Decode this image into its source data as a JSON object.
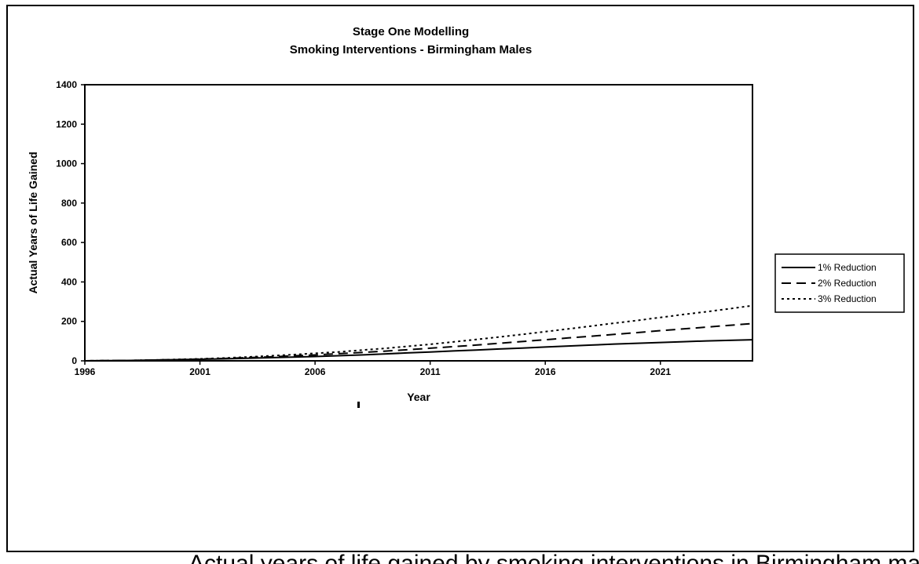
{
  "chart_data": {
    "type": "line",
    "title": "Stage One Modelling",
    "subtitle": "Smoking Interventions - Birmingham Males",
    "xlabel": "Year",
    "ylabel": "Actual Years of Life Gained",
    "xlim": [
      1996,
      2025
    ],
    "ylim": [
      0,
      1400
    ],
    "x_ticks": [
      1996,
      2001,
      2006,
      2011,
      2016,
      2021
    ],
    "y_ticks": [
      0,
      200,
      400,
      600,
      800,
      1000,
      1200,
      1400
    ],
    "grid": false,
    "legend_position": "right",
    "x": [
      1996,
      1997,
      1998,
      1999,
      2000,
      2001,
      2002,
      2003,
      2004,
      2005,
      2006,
      2007,
      2008,
      2009,
      2010,
      2011,
      2012,
      2013,
      2014,
      2015,
      2016,
      2017,
      2018,
      2019,
      2020,
      2021,
      2022,
      2023,
      2024,
      2025
    ],
    "series": [
      {
        "name": "1% Reduction",
        "dash": "solid",
        "values": [
          0,
          1,
          2,
          4,
          6,
          8,
          10,
          13,
          16,
          19,
          22,
          26,
          30,
          35,
          40,
          45,
          50,
          55,
          60,
          65,
          70,
          75,
          80,
          85,
          89,
          93,
          97,
          101,
          104,
          107
        ]
      },
      {
        "name": "2% Reduction",
        "dash": "dashed",
        "values": [
          0,
          1,
          2,
          4,
          6,
          9,
          12,
          16,
          20,
          25,
          30,
          36,
          42,
          49,
          56,
          64,
          72,
          80,
          89,
          98,
          107,
          116,
          125,
          134,
          143,
          153,
          162,
          171,
          180,
          189
        ]
      },
      {
        "name": "3% Reduction",
        "dash": "dotted",
        "values": [
          0,
          1,
          2,
          4,
          7,
          10,
          14,
          19,
          25,
          31,
          38,
          45,
          54,
          63,
          73,
          84,
          96,
          108,
          121,
          134,
          148,
          162,
          176,
          191,
          205,
          220,
          235,
          249,
          264,
          280
        ]
      }
    ]
  },
  "cutoff_caption": "Actual years of life gained by smoking interventions in Birmingham males"
}
